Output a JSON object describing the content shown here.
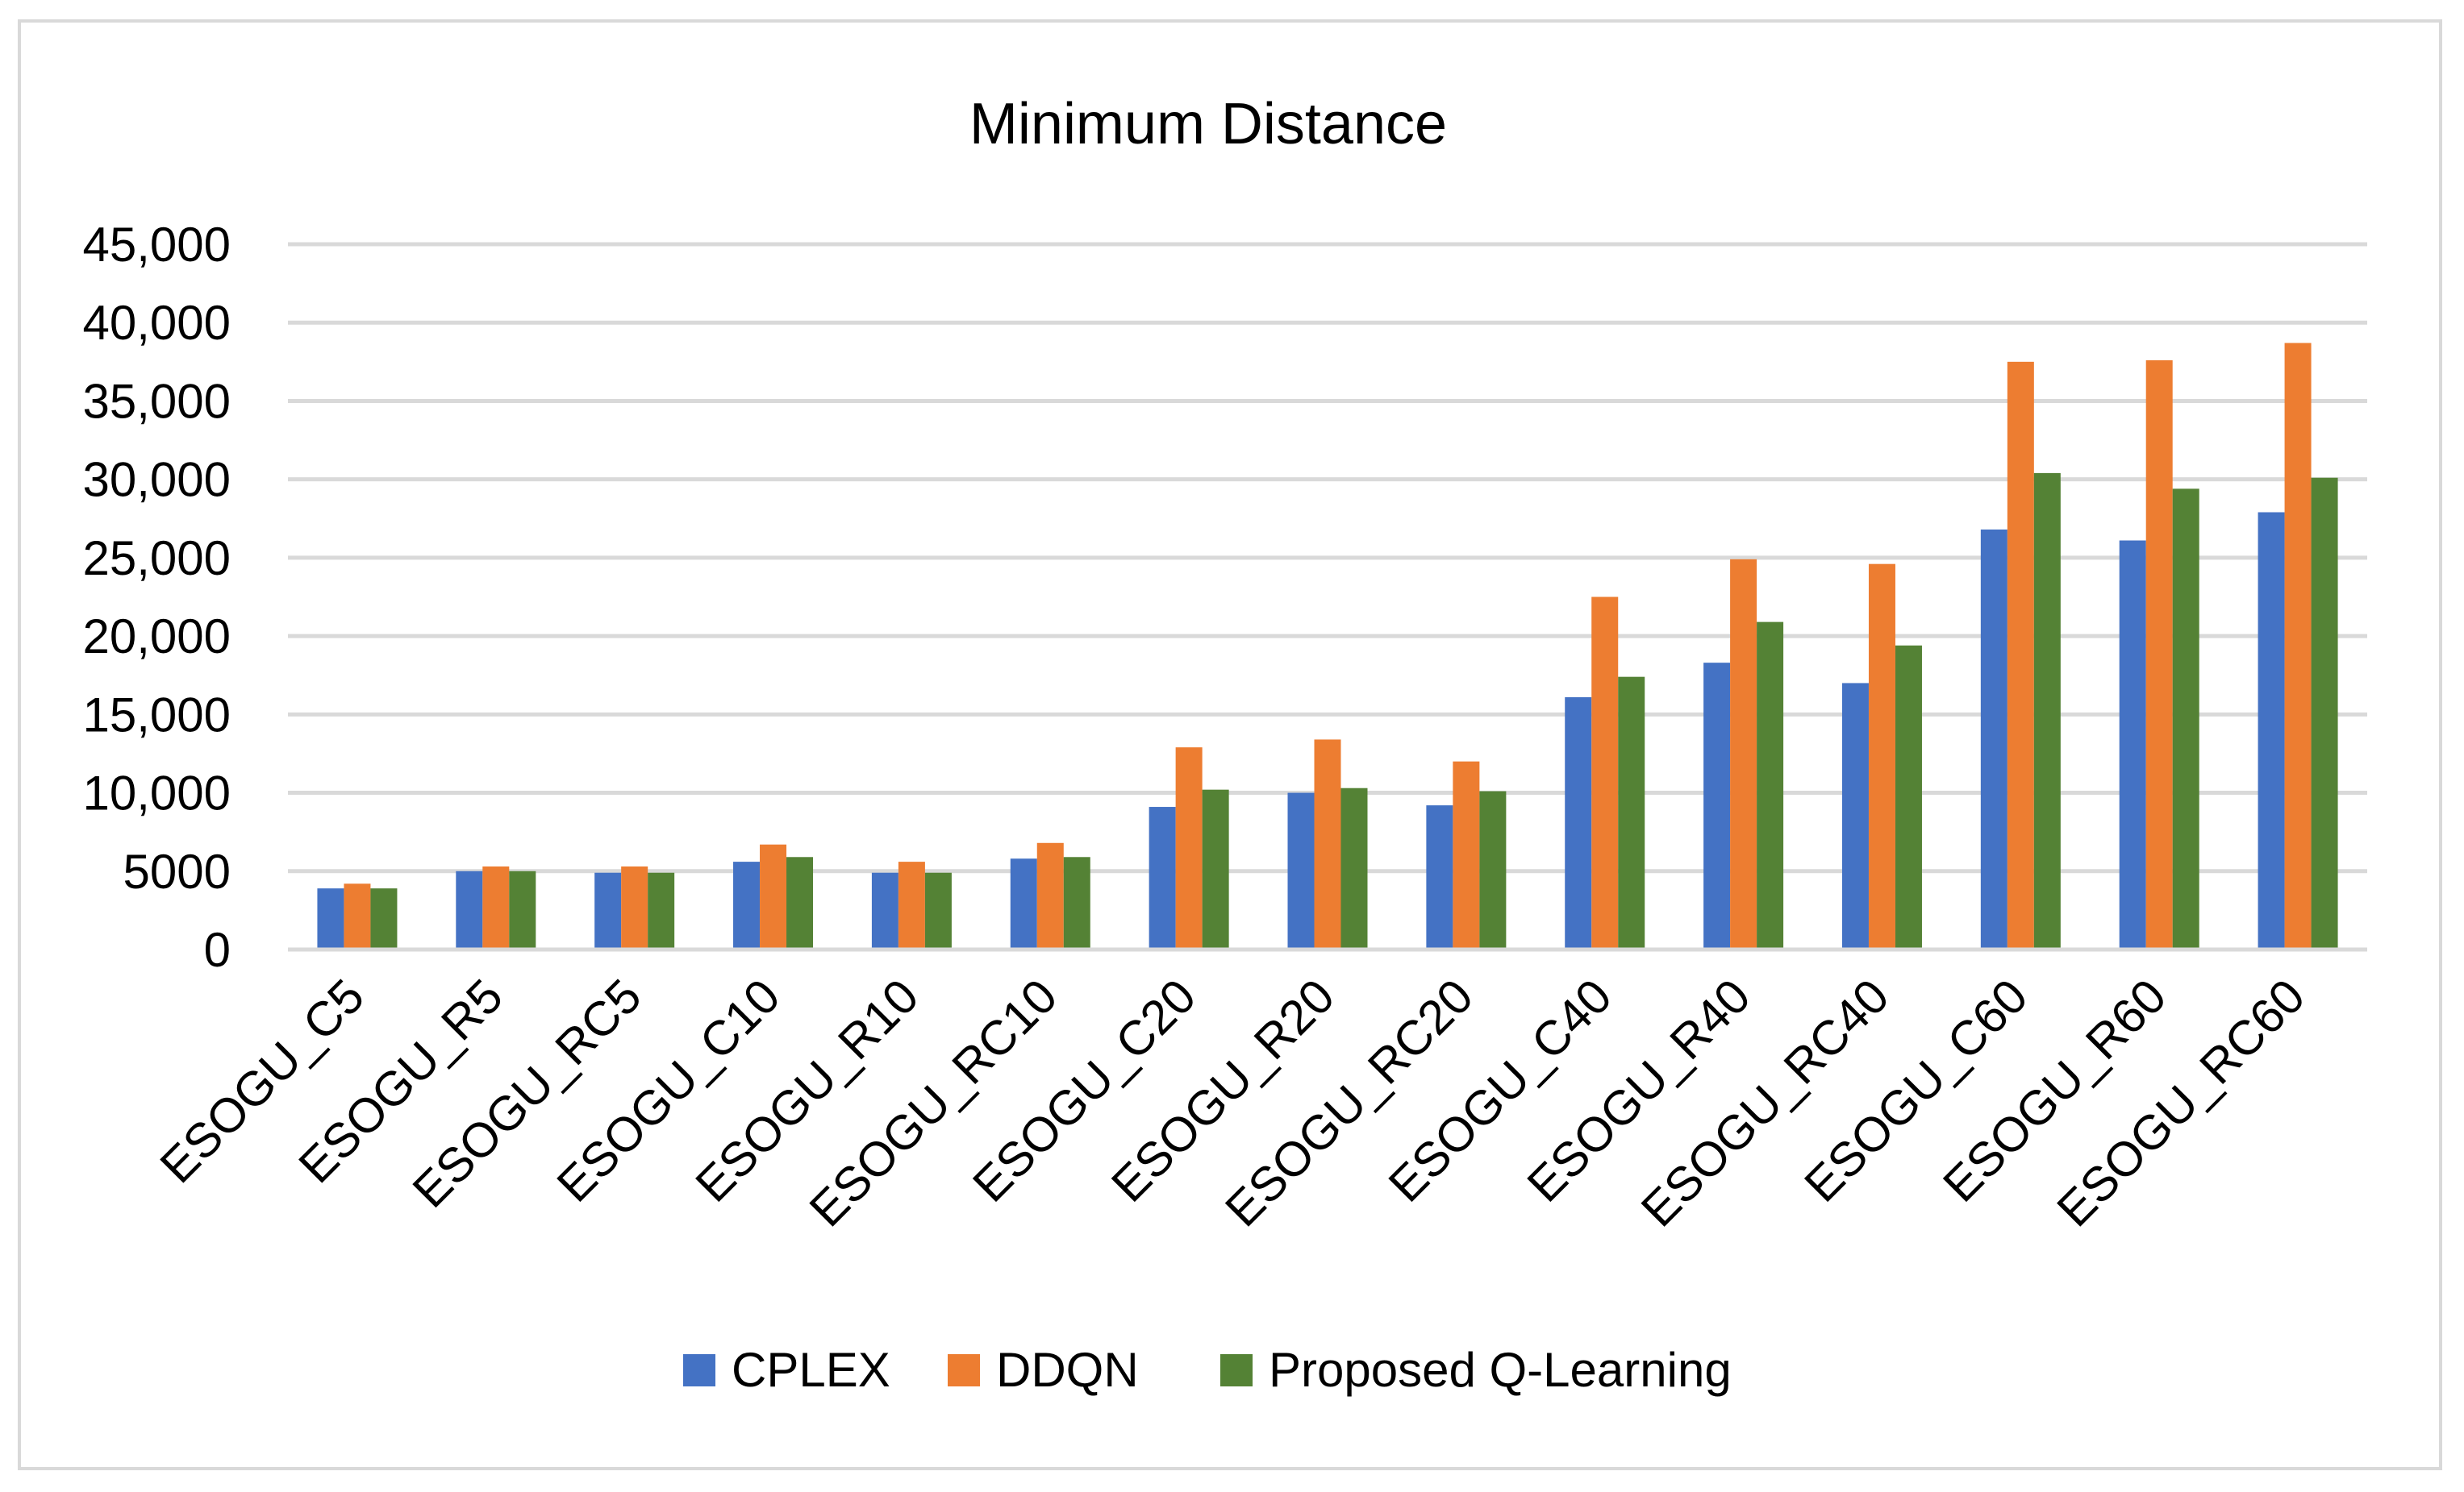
{
  "chart_data": {
    "type": "bar",
    "title": "Minimum Distance",
    "xlabel": "",
    "ylabel": "",
    "ylim": [
      0,
      45000
    ],
    "grid": true,
    "legend_position": "bottom",
    "y_ticks": [
      0,
      5000,
      10000,
      15000,
      20000,
      25000,
      30000,
      35000,
      40000,
      45000
    ],
    "y_tick_labels": [
      "0",
      "5000",
      "10,000",
      "15,000",
      "20,000",
      "25,000",
      "30,000",
      "35,000",
      "40,000",
      "45,000"
    ],
    "categories": [
      "ESOGU_C5",
      "ESOGU_R5",
      "ESOGU_RC5",
      "ESOGU_C10",
      "ESOGU_R10",
      "ESOGU_RC10",
      "ESOGU_C20",
      "ESOGU_R20",
      "ESOGU_RC20",
      "ESOGU_C40",
      "ESOGU_R40",
      "ESOGU_RC40",
      "ESOGU_C60",
      "ESOGU_R60",
      "ESOGU_RC60"
    ],
    "series": [
      {
        "name": "CPLEX",
        "color": "#4472c4",
        "values": [
          3900,
          5000,
          4900,
          5600,
          4900,
          5800,
          9100,
          10000,
          9200,
          16100,
          18300,
          17000,
          26800,
          26100,
          27900
        ]
      },
      {
        "name": "DDQN",
        "color": "#ed7d31",
        "values": [
          4200,
          5300,
          5300,
          6700,
          5600,
          6800,
          12900,
          13400,
          12000,
          22500,
          24900,
          24600,
          37500,
          37600,
          38700
        ]
      },
      {
        "name": "Proposed Q-Learning",
        "color": "#548235",
        "values": [
          3900,
          5000,
          4900,
          5900,
          4900,
          5900,
          10200,
          10300,
          10100,
          17400,
          20900,
          19400,
          30400,
          29400,
          30100
        ]
      }
    ]
  }
}
